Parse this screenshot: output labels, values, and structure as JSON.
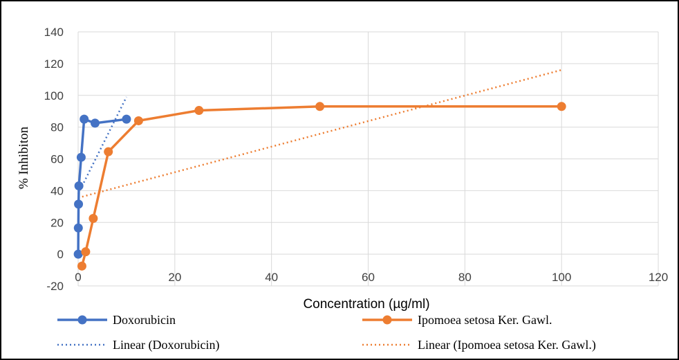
{
  "chart_data": {
    "type": "scatter",
    "title": "",
    "xlabel": "Concentration (µg/ml)",
    "ylabel": "% Inhibiton",
    "xlim": [
      0,
      120
    ],
    "ylim": [
      -20,
      140
    ],
    "x_ticks": [
      0,
      20,
      40,
      60,
      80,
      100,
      120
    ],
    "y_ticks": [
      -20,
      0,
      20,
      40,
      60,
      80,
      100,
      120,
      140
    ],
    "grid": true,
    "legend_position": "bottom",
    "series": [
      {
        "name": "Doxorubicin",
        "color": "#4472C4",
        "mode": "lines+markers",
        "points": [
          [
            0.02,
            0
          ],
          [
            0.04,
            16.5
          ],
          [
            0.08,
            31.5
          ],
          [
            0.16,
            43
          ],
          [
            0.63,
            61
          ],
          [
            1.25,
            85
          ],
          [
            3.5,
            82.5
          ],
          [
            10,
            85
          ]
        ]
      },
      {
        "name": "Ipomoea setosa Ker. Gawl.",
        "color": "#ED7D31",
        "mode": "lines+markers",
        "points": [
          [
            0.78,
            -7.5
          ],
          [
            1.56,
            1.5
          ],
          [
            3.13,
            22.5
          ],
          [
            6.25,
            64.5
          ],
          [
            12.5,
            84
          ],
          [
            25,
            90.5
          ],
          [
            50,
            93
          ],
          [
            100,
            93
          ]
        ]
      }
    ],
    "trendlines": [
      {
        "name": "Linear (Doxorubicin)",
        "color": "#4472C4",
        "style": "dotted",
        "from": [
          0.02,
          38
        ],
        "to": [
          10,
          99
        ]
      },
      {
        "name": "Linear (Ipomoea setosa Ker. Gawl.)",
        "color": "#ED7D31",
        "style": "dotted",
        "from": [
          0,
          35.5
        ],
        "to": [
          100,
          116
        ]
      }
    ]
  }
}
